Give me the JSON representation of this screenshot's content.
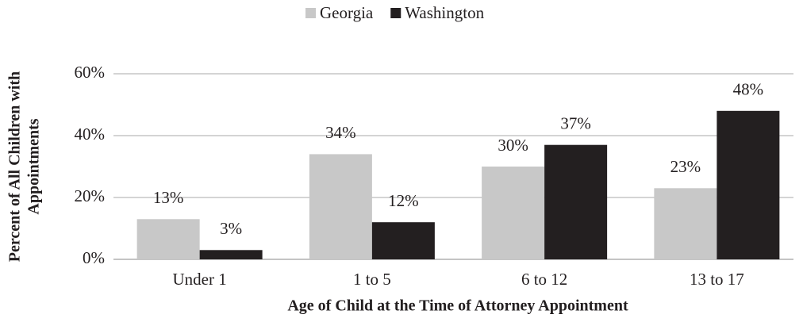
{
  "chart_data": {
    "type": "bar",
    "categories": [
      "Under 1",
      "1 to 5",
      "6 to 12",
      "13 to 17"
    ],
    "series": [
      {
        "name": "Georgia",
        "color": "#c8c8c8",
        "values": [
          13,
          34,
          30,
          23
        ],
        "value_labels": [
          "13%",
          "34%",
          "30%",
          "23%"
        ]
      },
      {
        "name": "Washington",
        "color": "#231f20",
        "values": [
          3,
          12,
          37,
          48
        ],
        "value_labels": [
          "3%",
          "12%",
          "37%",
          "48%"
        ]
      }
    ],
    "ylim": [
      0,
      60
    ],
    "yticks": [
      {
        "value": 0,
        "label": "0%"
      },
      {
        "value": 20,
        "label": "20%"
      },
      {
        "value": 40,
        "label": "40%"
      },
      {
        "value": 60,
        "label": "60%"
      }
    ],
    "grid": true,
    "legend": "top",
    "xlabel": "Age of Child at the Time of Attorney Appointment",
    "ylabel": [
      "Percent of All Children with",
      "Appointments"
    ]
  }
}
